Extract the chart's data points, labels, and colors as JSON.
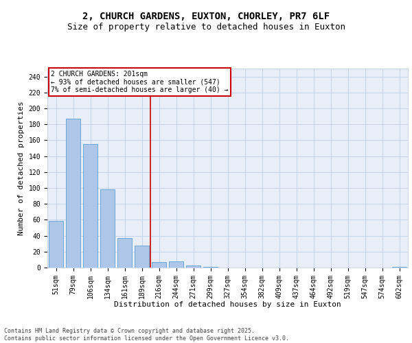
{
  "title_line1": "2, CHURCH GARDENS, EUXTON, CHORLEY, PR7 6LF",
  "title_line2": "Size of property relative to detached houses in Euxton",
  "xlabel": "Distribution of detached houses by size in Euxton",
  "ylabel": "Number of detached properties",
  "categories": [
    "51sqm",
    "79sqm",
    "106sqm",
    "134sqm",
    "161sqm",
    "189sqm",
    "216sqm",
    "244sqm",
    "271sqm",
    "299sqm",
    "327sqm",
    "354sqm",
    "382sqm",
    "409sqm",
    "437sqm",
    "464sqm",
    "492sqm",
    "519sqm",
    "547sqm",
    "574sqm",
    "602sqm"
  ],
  "values": [
    59,
    187,
    155,
    98,
    37,
    28,
    7,
    8,
    3,
    1,
    0,
    0,
    0,
    0,
    0,
    0,
    0,
    0,
    0,
    0,
    1
  ],
  "bar_color": "#aec6e8",
  "bar_edge_color": "#5a9fd4",
  "property_line_x": 5.5,
  "annotation_text": "2 CHURCH GARDENS: 201sqm\n← 93% of detached houses are smaller (547)\n7% of semi-detached houses are larger (40) →",
  "annotation_box_color": "#ffffff",
  "annotation_box_edge_color": "#cc0000",
  "vline_color": "#cc0000",
  "ylim": [
    0,
    250
  ],
  "yticks": [
    0,
    20,
    40,
    60,
    80,
    100,
    120,
    140,
    160,
    180,
    200,
    220,
    240
  ],
  "grid_color": "#c0d0e8",
  "background_color": "#e8eef8",
  "footer_text": "Contains HM Land Registry data © Crown copyright and database right 2025.\nContains public sector information licensed under the Open Government Licence v3.0.",
  "title_fontsize": 10,
  "subtitle_fontsize": 9,
  "axis_label_fontsize": 8,
  "tick_fontsize": 7,
  "annotation_fontsize": 7,
  "footer_fontsize": 6
}
